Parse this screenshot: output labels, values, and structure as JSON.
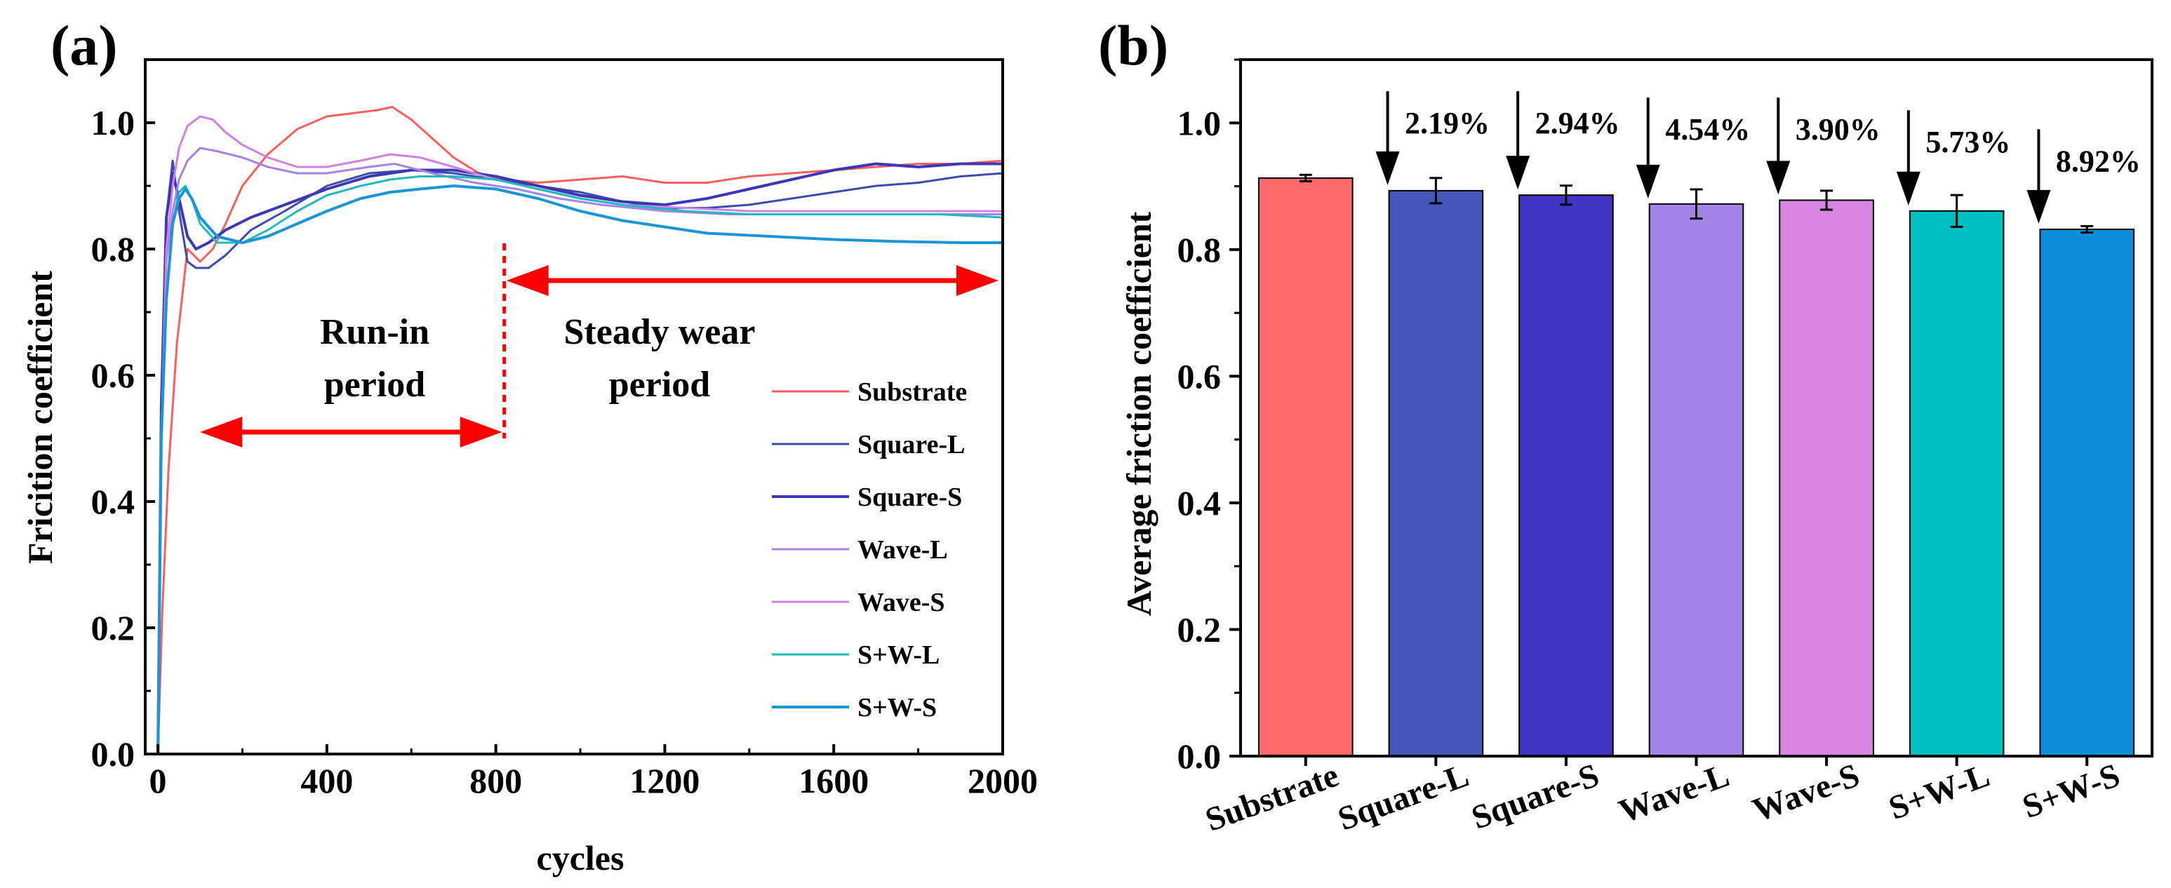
{
  "chart_data": [
    {
      "type": "line",
      "panel_label": "(a)",
      "xlabel": "cycles",
      "ylabel": "Fricition coefficient",
      "xlim": [
        -30,
        2000
      ],
      "ylim": [
        0.0,
        1.1
      ],
      "xticks": [
        "0",
        "400",
        "800",
        "1200",
        "1600",
        "2000"
      ],
      "yticks": [
        "0.0",
        "0.2",
        "0.4",
        "0.6",
        "0.8",
        "1.0"
      ],
      "legend_position": "bottom-right",
      "annotations": {
        "runin_line1": "Run-in",
        "runin_line2": "period",
        "steady_line1": "Steady wear",
        "steady_line2": "period",
        "divider_x": 820,
        "runin_arrow_x": [
          100,
          815
        ],
        "runin_arrow_y": 0.51,
        "steady_arrow_x": [
          825,
          2000
        ],
        "steady_arrow_y": 0.75,
        "arrow_color": "#ff0000"
      },
      "series": [
        {
          "name": "Substrate",
          "color": "#f8605f",
          "width": 3,
          "x": [
            0,
            10,
            25,
            45,
            70,
            100,
            130,
            160,
            200,
            260,
            330,
            400,
            460,
            520,
            555,
            600,
            650,
            700,
            760,
            820,
            900,
            1000,
            1100,
            1200,
            1300,
            1400,
            1500,
            1600,
            1700,
            1800,
            1900,
            2000
          ],
          "y": [
            0.0,
            0.22,
            0.45,
            0.65,
            0.8,
            0.78,
            0.8,
            0.84,
            0.9,
            0.95,
            0.99,
            1.01,
            1.015,
            1.02,
            1.025,
            1.005,
            0.975,
            0.945,
            0.92,
            0.91,
            0.905,
            0.91,
            0.915,
            0.905,
            0.905,
            0.915,
            0.92,
            0.925,
            0.93,
            0.935,
            0.935,
            0.94
          ]
        },
        {
          "name": "Square-L",
          "color": "#3d4aae",
          "width": 3,
          "x": [
            0,
            8,
            20,
            35,
            50,
            70,
            90,
            120,
            160,
            220,
            300,
            400,
            500,
            600,
            700,
            800,
            900,
            1000,
            1100,
            1200,
            1300,
            1400,
            1500,
            1600,
            1700,
            1800,
            1900,
            2000
          ],
          "y": [
            0.0,
            0.55,
            0.85,
            0.94,
            0.86,
            0.78,
            0.77,
            0.77,
            0.79,
            0.83,
            0.86,
            0.9,
            0.92,
            0.925,
            0.92,
            0.91,
            0.9,
            0.89,
            0.875,
            0.865,
            0.865,
            0.87,
            0.88,
            0.89,
            0.9,
            0.905,
            0.915,
            0.92
          ]
        },
        {
          "name": "Square-S",
          "color": "#3b37b5",
          "width": 4,
          "x": [
            0,
            8,
            20,
            35,
            50,
            70,
            90,
            120,
            160,
            220,
            300,
            400,
            500,
            600,
            700,
            800,
            900,
            1000,
            1100,
            1200,
            1300,
            1400,
            1500,
            1600,
            1700,
            1800,
            1900,
            2000
          ],
          "y": [
            0.0,
            0.55,
            0.85,
            0.92,
            0.88,
            0.82,
            0.8,
            0.81,
            0.83,
            0.85,
            0.87,
            0.895,
            0.915,
            0.925,
            0.925,
            0.915,
            0.9,
            0.885,
            0.875,
            0.87,
            0.88,
            0.895,
            0.91,
            0.925,
            0.935,
            0.93,
            0.935,
            0.935
          ]
        },
        {
          "name": "Wave-L",
          "color": "#a484e8",
          "width": 3,
          "x": [
            0,
            8,
            20,
            35,
            50,
            70,
            100,
            140,
            200,
            260,
            330,
            400,
            500,
            560,
            650,
            750,
            850,
            950,
            1050,
            1200,
            1350,
            1500,
            1650,
            1800,
            2000
          ],
          "y": [
            0.0,
            0.5,
            0.78,
            0.86,
            0.91,
            0.94,
            0.96,
            0.955,
            0.945,
            0.93,
            0.92,
            0.92,
            0.93,
            0.935,
            0.92,
            0.905,
            0.895,
            0.88,
            0.87,
            0.86,
            0.855,
            0.855,
            0.855,
            0.855,
            0.855
          ]
        },
        {
          "name": "Wave-S",
          "color": "#cf82e2",
          "width": 3,
          "x": [
            0,
            8,
            20,
            35,
            50,
            70,
            100,
            130,
            160,
            200,
            260,
            330,
            400,
            480,
            550,
            620,
            700,
            800,
            900,
            1000,
            1100,
            1250,
            1400,
            1550,
            1700,
            1850,
            2000
          ],
          "y": [
            0.0,
            0.5,
            0.8,
            0.9,
            0.96,
            0.995,
            1.01,
            1.005,
            0.985,
            0.965,
            0.945,
            0.93,
            0.93,
            0.94,
            0.95,
            0.945,
            0.93,
            0.91,
            0.895,
            0.88,
            0.87,
            0.865,
            0.86,
            0.86,
            0.86,
            0.86,
            0.86
          ]
        },
        {
          "name": "S+W-L",
          "color": "#21b9bb",
          "width": 3,
          "x": [
            0,
            8,
            20,
            35,
            50,
            65,
            80,
            100,
            140,
            200,
            260,
            330,
            400,
            480,
            550,
            620,
            700,
            800,
            900,
            1000,
            1100,
            1250,
            1400,
            1550,
            1700,
            1850,
            2000
          ],
          "y": [
            0.0,
            0.5,
            0.72,
            0.84,
            0.89,
            0.9,
            0.88,
            0.84,
            0.81,
            0.81,
            0.83,
            0.86,
            0.885,
            0.9,
            0.91,
            0.915,
            0.915,
            0.91,
            0.895,
            0.88,
            0.87,
            0.86,
            0.855,
            0.855,
            0.855,
            0.855,
            0.85
          ]
        },
        {
          "name": "S+W-S",
          "color": "#1a96d6",
          "width": 4,
          "x": [
            0,
            8,
            20,
            35,
            50,
            65,
            80,
            100,
            140,
            200,
            260,
            330,
            400,
            480,
            550,
            620,
            700,
            800,
            900,
            1000,
            1100,
            1200,
            1300,
            1450,
            1600,
            1750,
            1900,
            2000
          ],
          "y": [
            0.0,
            0.5,
            0.72,
            0.84,
            0.88,
            0.895,
            0.88,
            0.85,
            0.82,
            0.81,
            0.82,
            0.84,
            0.86,
            0.88,
            0.89,
            0.895,
            0.9,
            0.895,
            0.88,
            0.86,
            0.845,
            0.835,
            0.825,
            0.82,
            0.815,
            0.812,
            0.81,
            0.81
          ]
        }
      ]
    },
    {
      "type": "bar",
      "panel_label": "(b)",
      "xlabel": "",
      "ylabel": "Average friction coefficient",
      "ylim": [
        0.0,
        1.1
      ],
      "yticks": [
        "0.0",
        "0.2",
        "0.4",
        "0.6",
        "0.8",
        "1.0"
      ],
      "categories": [
        "Substrate",
        "Square-L",
        "Square-S",
        "Wave-L",
        "Wave-S",
        "S+W-L",
        "S+W-S"
      ],
      "values": [
        0.913,
        0.893,
        0.886,
        0.872,
        0.878,
        0.861,
        0.832
      ],
      "errors": [
        0.005,
        0.02,
        0.015,
        0.023,
        0.015,
        0.025,
        0.005
      ],
      "colors": [
        "#ff6b6c",
        "#4555b8",
        "#3f35c2",
        "#a484e8",
        "#d986e3",
        "#00bfc0",
        "#0c8edb"
      ],
      "reductions": [
        "",
        "2.19%",
        "2.94%",
        "4.54%",
        "3.90%",
        "5.73%",
        "8.92%"
      ],
      "reduction_arrow_tops": [
        null,
        1.05,
        1.05,
        1.04,
        1.04,
        1.02,
        0.99
      ]
    }
  ]
}
